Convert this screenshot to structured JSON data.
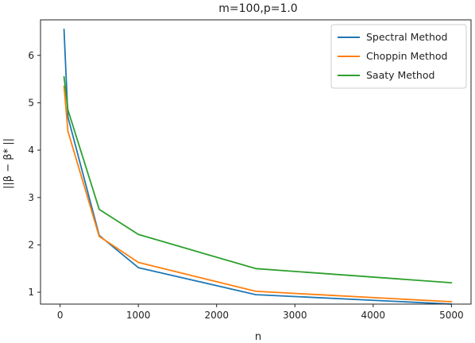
{
  "chart_data": {
    "type": "line",
    "title": "m=100,p=1.0",
    "xlabel": "n",
    "ylabel": "||β − β* ||",
    "xlim": [
      -250,
      5250
    ],
    "ylim": [
      0.75,
      6.75
    ],
    "xticks": [
      0,
      1000,
      2000,
      3000,
      4000,
      5000
    ],
    "yticks": [
      1,
      2,
      3,
      4,
      5,
      6
    ],
    "legend_position": "top-right",
    "grid": false,
    "series": [
      {
        "name": "Spectral Method",
        "color": "#1f77b4",
        "x": [
          50,
          100,
          500,
          1000,
          2500,
          5000
        ],
        "y": [
          6.55,
          4.7,
          2.2,
          1.52,
          0.95,
          0.75
        ]
      },
      {
        "name": "Choppin Method",
        "color": "#ff7f0e",
        "x": [
          50,
          100,
          500,
          1000,
          2500,
          5000
        ],
        "y": [
          5.35,
          4.4,
          2.18,
          1.63,
          1.02,
          0.8
        ]
      },
      {
        "name": "Saaty Method",
        "color": "#2ca02c",
        "x": [
          50,
          100,
          500,
          1000,
          2500,
          5000
        ],
        "y": [
          5.55,
          4.85,
          2.75,
          2.22,
          1.5,
          1.2
        ]
      }
    ]
  }
}
